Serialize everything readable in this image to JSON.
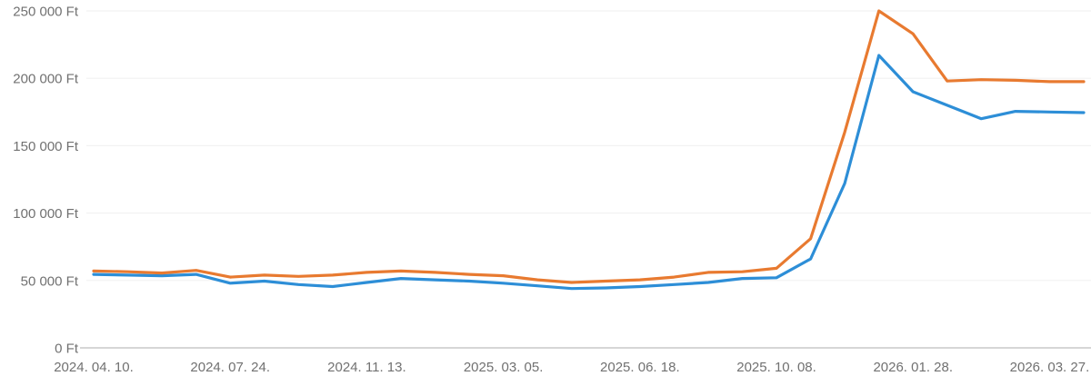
{
  "chart_data": {
    "type": "line",
    "title": "",
    "xlabel": "",
    "ylabel": "",
    "currency": "Ft",
    "ylim": [
      0,
      250000
    ],
    "grid": "horizontal-only",
    "legend": "none",
    "background_color": "#ffffff",
    "grid_color": "#f2f2f2",
    "baseline_color": "#c9c9c9",
    "axis_text_color": "#717171",
    "num_points": 30,
    "y_ticks": [
      {
        "value": 250000,
        "label": "250 000 Ft"
      },
      {
        "value": 200000,
        "label": "200 000 Ft"
      },
      {
        "value": 150000,
        "label": "150 000 Ft"
      },
      {
        "value": 100000,
        "label": "100 000 Ft"
      },
      {
        "value": 50000,
        "label": "50 000 Ft"
      },
      {
        "value": 0,
        "label": "0 Ft"
      }
    ],
    "x_ticks": [
      {
        "index": 0,
        "label": "2024. 04. 10."
      },
      {
        "index": 4,
        "label": "2024. 07. 24."
      },
      {
        "index": 8,
        "label": "2024. 11. 13."
      },
      {
        "index": 12,
        "label": "2025. 03. 05."
      },
      {
        "index": 16,
        "label": "2025. 06. 18."
      },
      {
        "index": 20,
        "label": "2025. 10. 08."
      },
      {
        "index": 24,
        "label": "2026. 01. 28."
      },
      {
        "index": 28,
        "label": "2026. 03. 27."
      }
    ],
    "series": [
      {
        "id": "lower-blue-line",
        "color": "#2d8ed7",
        "values": [
          54500,
          54000,
          53500,
          54500,
          48000,
          49500,
          47000,
          45500,
          48500,
          51500,
          50500,
          49500,
          48000,
          46000,
          44000,
          44500,
          45500,
          47000,
          48500,
          51500,
          52000,
          66000,
          122000,
          217000,
          190000,
          180000,
          170000,
          175500,
          175000,
          174500
        ]
      },
      {
        "id": "upper-orange-line",
        "color": "#e87a30",
        "values": [
          57000,
          56500,
          55500,
          57500,
          52500,
          54000,
          53000,
          54000,
          56000,
          57000,
          56000,
          54500,
          53500,
          50500,
          48500,
          49500,
          50500,
          52500,
          56000,
          56500,
          59000,
          81000,
          160000,
          250000,
          233000,
          198000,
          199000,
          198500,
          197500,
          197500
        ]
      }
    ]
  }
}
